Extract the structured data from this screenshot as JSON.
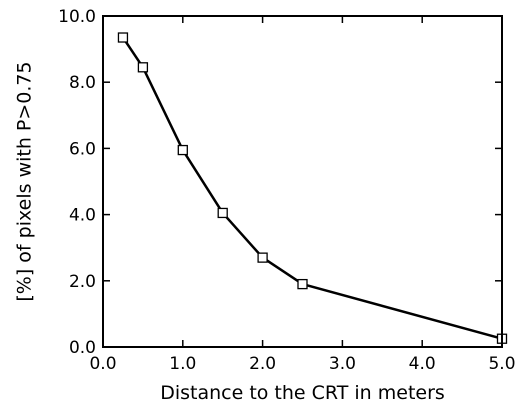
{
  "chart_data": {
    "type": "line",
    "title": "",
    "xlabel": "Distance to the CRT in meters",
    "ylabel": "[%] of pixels with P>0.75",
    "xlim": [
      0,
      5
    ],
    "ylim": [
      0,
      10
    ],
    "x_ticks": [
      "0.0",
      "1.0",
      "2.0",
      "3.0",
      "4.0",
      "5.0"
    ],
    "y_ticks": [
      "0.0",
      "2.0",
      "4.0",
      "6.0",
      "8.0",
      "10.0"
    ],
    "grid": false,
    "marker": "open-square",
    "line_color": "#000000",
    "series": [
      {
        "x": [
          0.25,
          0.5,
          1.0,
          1.5,
          2.0,
          2.5,
          5.0
        ],
        "y": [
          9.35,
          8.45,
          5.95,
          4.05,
          2.7,
          1.9,
          0.25
        ]
      }
    ]
  }
}
